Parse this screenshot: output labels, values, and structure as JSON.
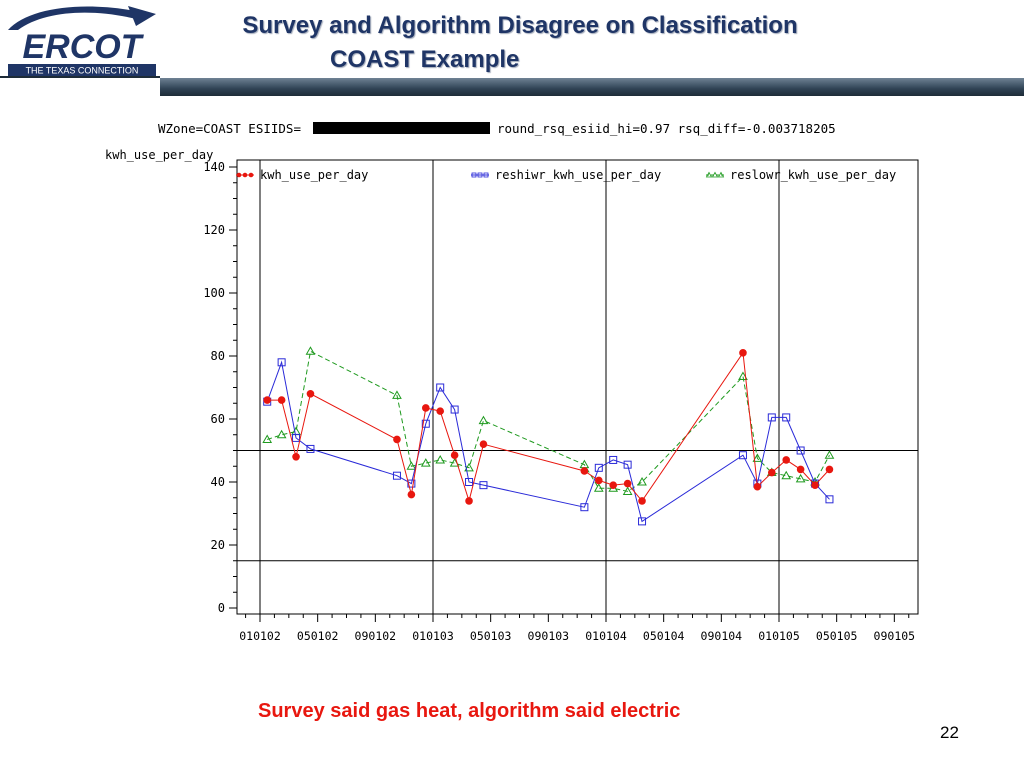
{
  "header": {
    "logo_text": "ERCOT",
    "logo_tagline": "THE TEXAS CONNECTION",
    "title_line1": "Survey and Algorithm Disagree on Classification",
    "title_line2": "COAST Example"
  },
  "colors": {
    "title": "#1f3566",
    "caption": "#e8170f",
    "series_red": "#e8170f",
    "series_blue": "#2a2ad8",
    "series_green": "#1f9a1f"
  },
  "chart_data": {
    "type": "line",
    "title_prefix": "WZone=COAST ESIIDS=",
    "title_suffix": "round_rsq_esiid_hi=0.97 rsq_diff=-0.003718205",
    "ylabel": "kwh_use_per_day",
    "ylim": [
      0,
      140
    ],
    "yticks": [
      0,
      20,
      40,
      60,
      80,
      100,
      120,
      140
    ],
    "xlim": [
      -1.5,
      45.5
    ],
    "x_unit": "months since Jan 2002",
    "xticks": [
      {
        "x": 0,
        "label": "010102"
      },
      {
        "x": 4,
        "label": "050102"
      },
      {
        "x": 8,
        "label": "090102"
      },
      {
        "x": 12,
        "label": "010103"
      },
      {
        "x": 16,
        "label": "050103"
      },
      {
        "x": 20,
        "label": "090103"
      },
      {
        "x": 24,
        "label": "010104"
      },
      {
        "x": 28,
        "label": "050104"
      },
      {
        "x": 32,
        "label": "090104"
      },
      {
        "x": 36,
        "label": "010105"
      },
      {
        "x": 40,
        "label": "050105"
      },
      {
        "x": 44,
        "label": "090105"
      }
    ],
    "reference_lines": {
      "vertical": [
        0,
        12,
        24,
        36
      ],
      "horizontal": [
        50,
        15
      ]
    },
    "x": [
      0.5,
      1.5,
      2.5,
      3.5,
      9.5,
      10.5,
      11.5,
      12.5,
      13.5,
      14.5,
      15.5,
      22.5,
      23.5,
      24.5,
      25.5,
      26.5,
      33.5,
      34.5,
      35.5,
      36.5,
      37.5,
      38.5,
      39.5
    ],
    "series": [
      {
        "name": "kwh_use_per_day",
        "marker": "dot",
        "line": "solid",
        "color": "#e8170f",
        "values": [
          66,
          66,
          48,
          68,
          53.5,
          36,
          63.5,
          62.5,
          48.5,
          34,
          52,
          43.5,
          40.5,
          39,
          39.5,
          34,
          81,
          38.5,
          43,
          47,
          44,
          39,
          44
        ]
      },
      {
        "name": "reshiwr_kwh_use_per_day",
        "marker": "square",
        "line": "solid",
        "color": "#2a2ad8",
        "values": [
          65.5,
          78,
          54,
          50.5,
          42,
          39.5,
          58.5,
          70,
          63,
          40,
          39,
          32,
          44.5,
          47,
          45.5,
          27.5,
          48.5,
          39.5,
          60.5,
          60.5,
          50,
          39.5,
          34.5
        ]
      },
      {
        "name": "reslowr_kwh_use_per_day",
        "marker": "triangle",
        "line": "dashed",
        "color": "#1f9a1f",
        "values": [
          53.5,
          55,
          56,
          81.5,
          67.5,
          45,
          46,
          47,
          46,
          44.5,
          59.5,
          45.5,
          38,
          38,
          37,
          40,
          73.5,
          47.5,
          43,
          42,
          41,
          40,
          48.5
        ]
      }
    ]
  },
  "caption": "Survey said gas heat, algorithm said electric",
  "page_number": "22"
}
